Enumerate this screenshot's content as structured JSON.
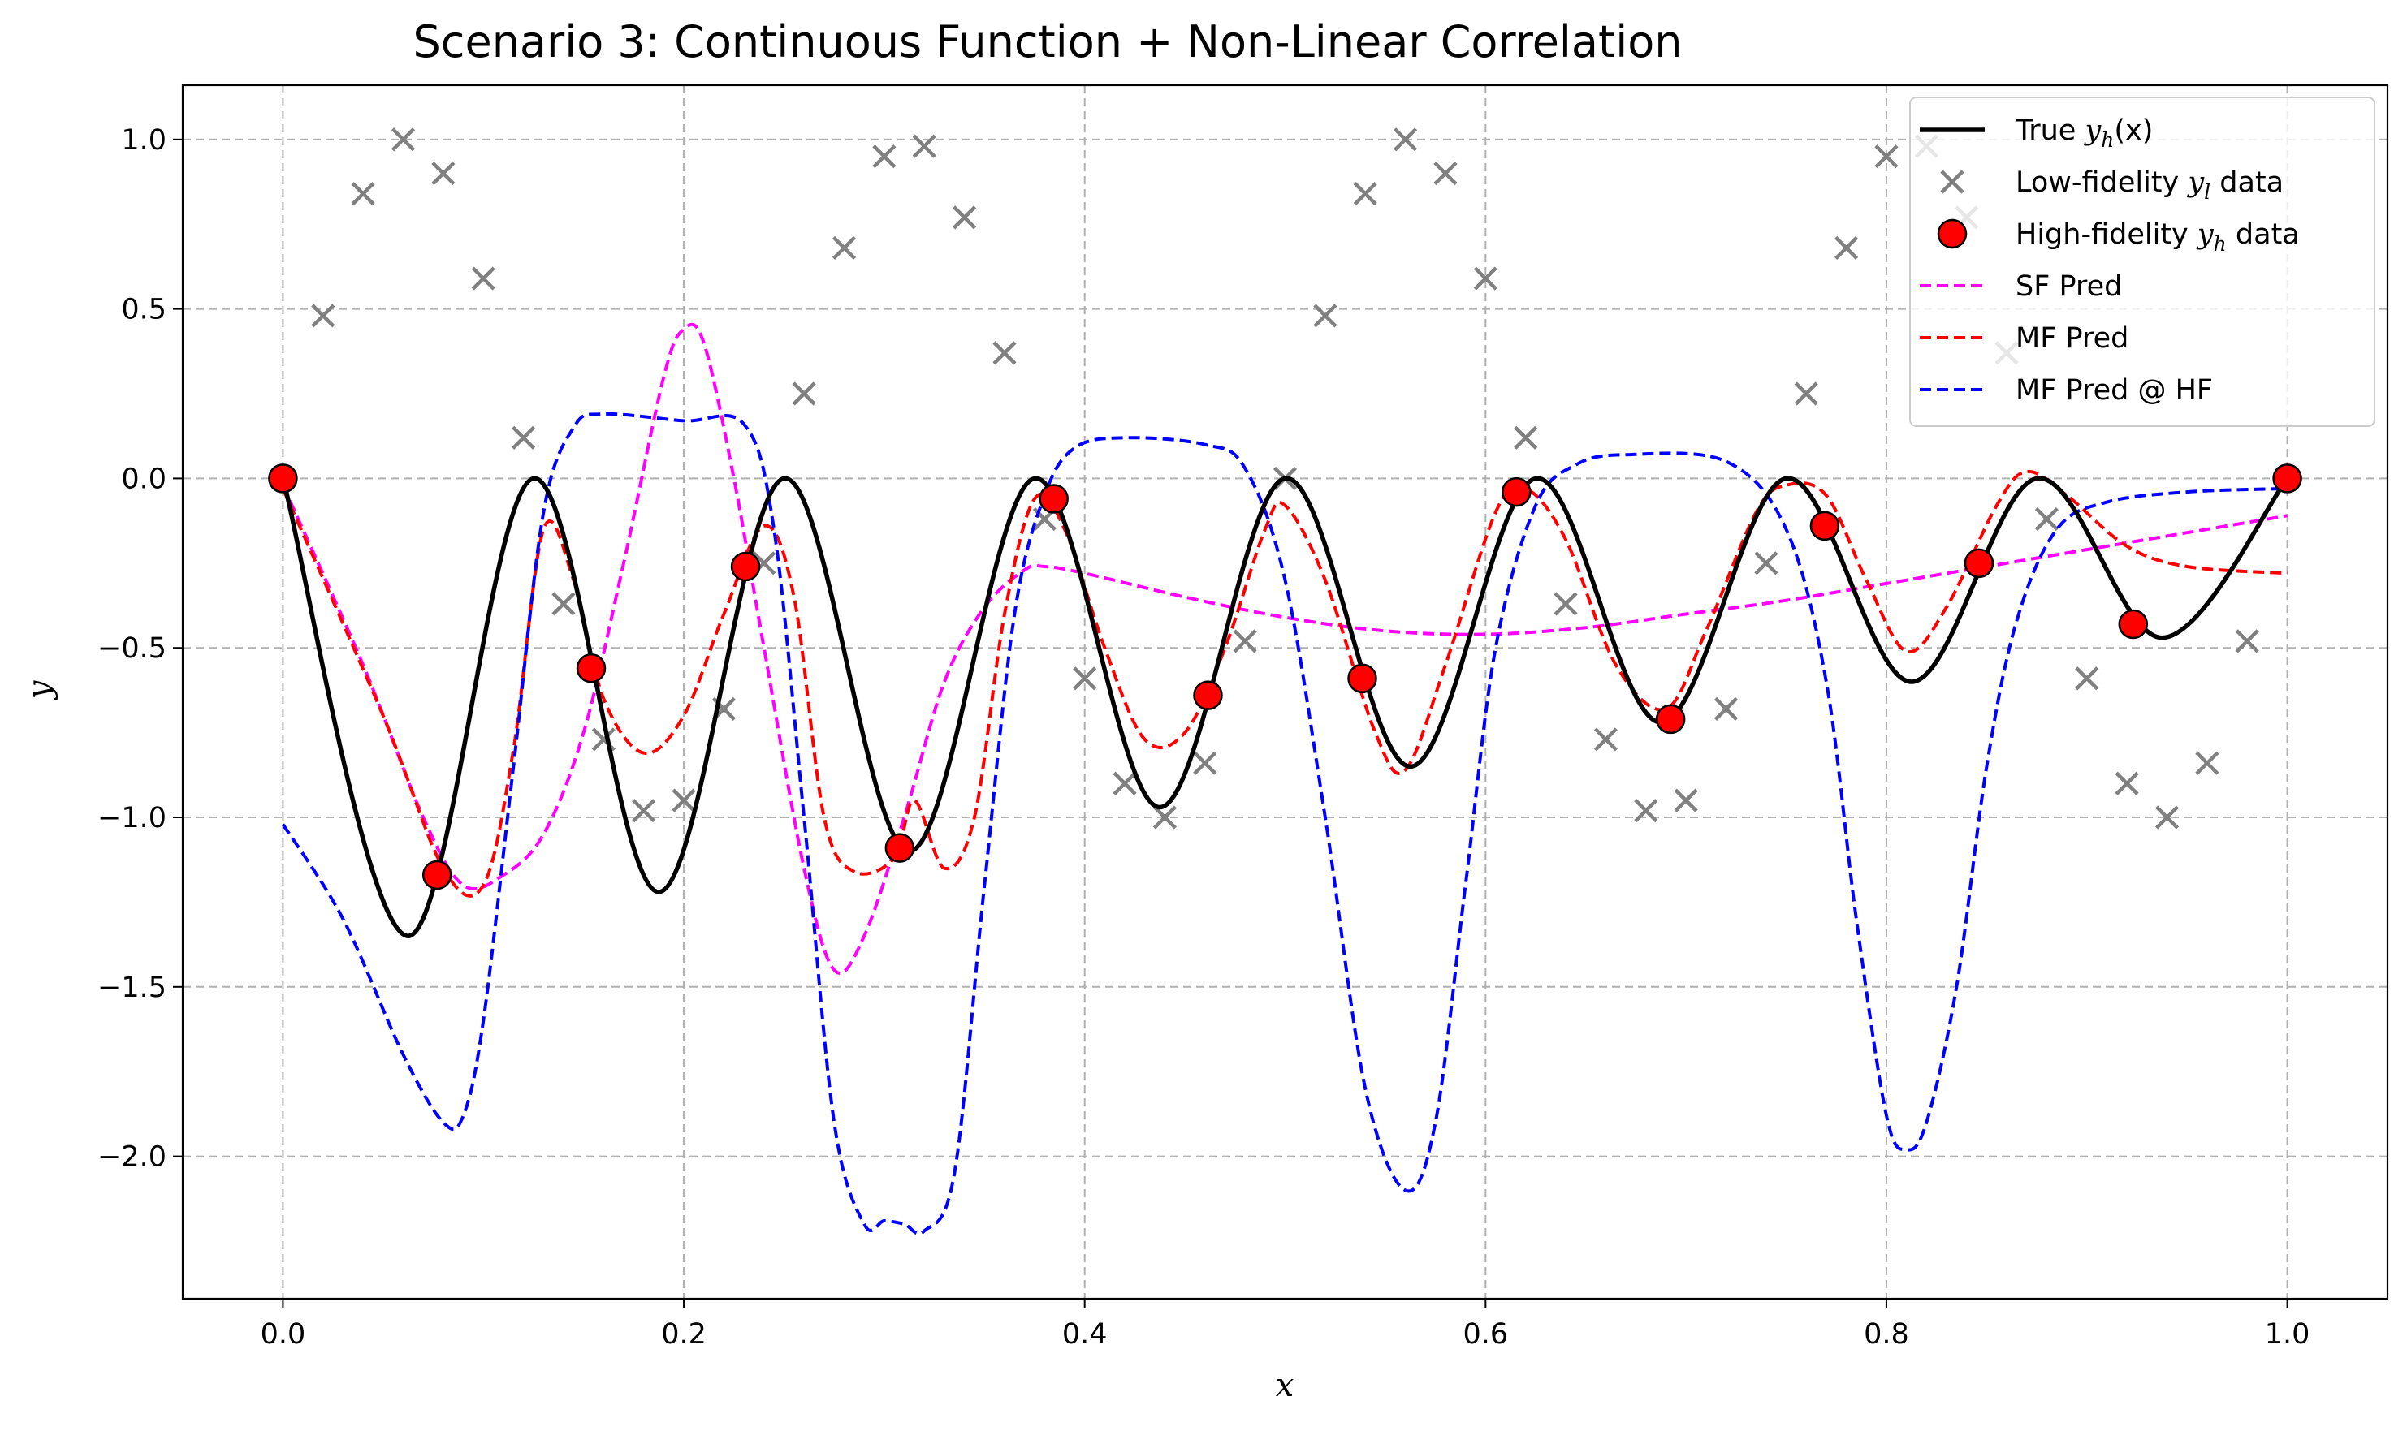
{
  "chart_data": {
    "type": "line",
    "title": "Scenario 3: Continuous Function + Non-Linear Correlation",
    "xlabel": "x",
    "ylabel": "y",
    "xlim": [
      -0.05,
      1.05
    ],
    "ylim": [
      -2.42,
      1.16
    ],
    "x_ticks": [
      0.0,
      0.2,
      0.4,
      0.6,
      0.8,
      1.0
    ],
    "x_tick_labels": [
      "0.0",
      "0.2",
      "0.4",
      "0.6",
      "0.8",
      "1.0"
    ],
    "y_ticks": [
      -2.0,
      -1.5,
      -1.0,
      -0.5,
      0.0,
      0.5,
      1.0
    ],
    "y_tick_labels": [
      "−2.0",
      "−1.5",
      "−1.0",
      "−0.5",
      "0.0",
      "0.5",
      "1.0"
    ],
    "grid": true,
    "legend_position": "upper right",
    "series": [
      {
        "name": "True y_h(x)",
        "kind": "line",
        "color": "#000000",
        "style": "solid",
        "points": [
          [
            0.0,
            0.0
          ],
          [
            0.0625,
            -1.35
          ],
          [
            0.125,
            0.0
          ],
          [
            0.1875,
            -1.22
          ],
          [
            0.25,
            0.0
          ],
          [
            0.3125,
            -1.1
          ],
          [
            0.375,
            0.0
          ],
          [
            0.4375,
            -0.97
          ],
          [
            0.5,
            0.0
          ],
          [
            0.5625,
            -0.85
          ],
          [
            0.625,
            0.0
          ],
          [
            0.6875,
            -0.72
          ],
          [
            0.75,
            0.0
          ],
          [
            0.8125,
            -0.6
          ],
          [
            0.875,
            0.0
          ],
          [
            0.9375,
            -0.47
          ],
          [
            1.0,
            0.0
          ]
        ]
      },
      {
        "name": "Low-fidelity y_l data",
        "kind": "scatter",
        "marker": "x",
        "color": "#808080",
        "points": [
          [
            0.0,
            0.0
          ],
          [
            0.02,
            0.48
          ],
          [
            0.04,
            0.84
          ],
          [
            0.06,
            1.0
          ],
          [
            0.08,
            0.9
          ],
          [
            0.1,
            0.59
          ],
          [
            0.12,
            0.12
          ],
          [
            0.14,
            -0.37
          ],
          [
            0.16,
            -0.77
          ],
          [
            0.18,
            -0.98
          ],
          [
            0.2,
            -0.95
          ],
          [
            0.22,
            -0.68
          ],
          [
            0.24,
            -0.25
          ],
          [
            0.26,
            0.25
          ],
          [
            0.28,
            0.68
          ],
          [
            0.3,
            0.95
          ],
          [
            0.32,
            0.98
          ],
          [
            0.34,
            0.77
          ],
          [
            0.36,
            0.37
          ],
          [
            0.38,
            -0.12
          ],
          [
            0.4,
            -0.59
          ],
          [
            0.42,
            -0.9
          ],
          [
            0.44,
            -1.0
          ],
          [
            0.46,
            -0.84
          ],
          [
            0.48,
            -0.48
          ],
          [
            0.5,
            0.0
          ],
          [
            0.52,
            0.48
          ],
          [
            0.54,
            0.84
          ],
          [
            0.56,
            1.0
          ],
          [
            0.58,
            0.9
          ],
          [
            0.6,
            0.59
          ],
          [
            0.62,
            0.12
          ],
          [
            0.64,
            -0.37
          ],
          [
            0.66,
            -0.77
          ],
          [
            0.68,
            -0.98
          ],
          [
            0.7,
            -0.95
          ],
          [
            0.72,
            -0.68
          ],
          [
            0.74,
            -0.25
          ],
          [
            0.76,
            0.25
          ],
          [
            0.78,
            0.68
          ],
          [
            0.8,
            0.95
          ],
          [
            0.82,
            0.98
          ],
          [
            0.84,
            0.77
          ],
          [
            0.86,
            0.37
          ],
          [
            0.88,
            -0.12
          ],
          [
            0.9,
            -0.59
          ],
          [
            0.92,
            -0.9
          ],
          [
            0.94,
            -1.0
          ],
          [
            0.96,
            -0.84
          ],
          [
            0.98,
            -0.48
          ],
          [
            1.0,
            0.0
          ]
        ]
      },
      {
        "name": "High-fidelity y_h data",
        "kind": "scatter",
        "marker": "o",
        "color": "#ff0000",
        "points": [
          [
            0.0,
            0.0
          ],
          [
            0.0769,
            -1.17
          ],
          [
            0.1538,
            -0.56
          ],
          [
            0.2308,
            -0.26
          ],
          [
            0.3077,
            -1.09
          ],
          [
            0.3846,
            -0.06
          ],
          [
            0.4615,
            -0.64
          ],
          [
            0.5385,
            -0.59
          ],
          [
            0.6154,
            -0.04
          ],
          [
            0.6923,
            -0.71
          ],
          [
            0.7692,
            -0.14
          ],
          [
            0.8462,
            -0.25
          ],
          [
            0.9231,
            -0.43
          ],
          [
            1.0,
            0.0
          ]
        ]
      },
      {
        "name": "SF Pred",
        "kind": "line",
        "color": "#ff00ff",
        "style": "dashed",
        "points": [
          [
            0.0,
            -0.02
          ],
          [
            0.04,
            -0.55
          ],
          [
            0.07,
            -1.0
          ],
          [
            0.09,
            -1.2
          ],
          [
            0.11,
            -1.17
          ],
          [
            0.13,
            -1.05
          ],
          [
            0.15,
            -0.75
          ],
          [
            0.17,
            -0.25
          ],
          [
            0.19,
            0.3
          ],
          [
            0.2,
            0.44
          ],
          [
            0.21,
            0.4
          ],
          [
            0.225,
            0.0
          ],
          [
            0.24,
            -0.5
          ],
          [
            0.26,
            -1.15
          ],
          [
            0.275,
            -1.45
          ],
          [
            0.29,
            -1.35
          ],
          [
            0.31,
            -1.0
          ],
          [
            0.33,
            -0.6
          ],
          [
            0.35,
            -0.38
          ],
          [
            0.37,
            -0.27
          ],
          [
            0.38,
            -0.26
          ],
          [
            0.4,
            -0.28
          ],
          [
            0.45,
            -0.35
          ],
          [
            0.5,
            -0.41
          ],
          [
            0.55,
            -0.45
          ],
          [
            0.6,
            -0.46
          ],
          [
            0.65,
            -0.44
          ],
          [
            0.7,
            -0.4
          ],
          [
            0.75,
            -0.36
          ],
          [
            0.8,
            -0.31
          ],
          [
            0.85,
            -0.26
          ],
          [
            0.9,
            -0.21
          ],
          [
            0.95,
            -0.16
          ],
          [
            1.0,
            -0.11
          ]
        ]
      },
      {
        "name": "MF Pred",
        "kind": "line",
        "color": "#ff0000",
        "style": "dashed",
        "points": [
          [
            0.0,
            -0.03
          ],
          [
            0.05,
            -0.7
          ],
          [
            0.08,
            -1.15
          ],
          [
            0.1,
            -1.2
          ],
          [
            0.115,
            -0.8
          ],
          [
            0.13,
            -0.15
          ],
          [
            0.145,
            -0.3
          ],
          [
            0.16,
            -0.65
          ],
          [
            0.18,
            -0.81
          ],
          [
            0.2,
            -0.7
          ],
          [
            0.22,
            -0.4
          ],
          [
            0.24,
            -0.14
          ],
          [
            0.255,
            -0.35
          ],
          [
            0.27,
            -1.0
          ],
          [
            0.285,
            -1.16
          ],
          [
            0.305,
            -1.12
          ],
          [
            0.315,
            -0.95
          ],
          [
            0.33,
            -1.15
          ],
          [
            0.345,
            -1.0
          ],
          [
            0.36,
            -0.4
          ],
          [
            0.375,
            -0.06
          ],
          [
            0.39,
            -0.15
          ],
          [
            0.41,
            -0.5
          ],
          [
            0.43,
            -0.77
          ],
          [
            0.45,
            -0.75
          ],
          [
            0.47,
            -0.5
          ],
          [
            0.49,
            -0.15
          ],
          [
            0.5,
            -0.08
          ],
          [
            0.52,
            -0.3
          ],
          [
            0.545,
            -0.75
          ],
          [
            0.56,
            -0.86
          ],
          [
            0.58,
            -0.55
          ],
          [
            0.605,
            -0.1
          ],
          [
            0.62,
            -0.03
          ],
          [
            0.64,
            -0.18
          ],
          [
            0.665,
            -0.55
          ],
          [
            0.69,
            -0.68
          ],
          [
            0.71,
            -0.45
          ],
          [
            0.735,
            -0.1
          ],
          [
            0.75,
            -0.02
          ],
          [
            0.77,
            -0.05
          ],
          [
            0.79,
            -0.3
          ],
          [
            0.81,
            -0.51
          ],
          [
            0.83,
            -0.38
          ],
          [
            0.855,
            -0.08
          ],
          [
            0.87,
            0.02
          ],
          [
            0.89,
            -0.05
          ],
          [
            0.92,
            -0.2
          ],
          [
            0.95,
            -0.26
          ],
          [
            1.0,
            -0.28
          ]
        ]
      },
      {
        "name": "MF Pred @ HF",
        "kind": "line",
        "color": "#0000ff",
        "style": "dashed",
        "points": [
          [
            0.0,
            -1.02
          ],
          [
            0.03,
            -1.3
          ],
          [
            0.06,
            -1.7
          ],
          [
            0.08,
            -1.9
          ],
          [
            0.09,
            -1.88
          ],
          [
            0.1,
            -1.6
          ],
          [
            0.115,
            -0.85
          ],
          [
            0.13,
            -0.1
          ],
          [
            0.145,
            0.15
          ],
          [
            0.16,
            0.19
          ],
          [
            0.2,
            0.17
          ],
          [
            0.23,
            0.16
          ],
          [
            0.245,
            -0.15
          ],
          [
            0.26,
            -1.0
          ],
          [
            0.275,
            -1.9
          ],
          [
            0.29,
            -2.2
          ],
          [
            0.3,
            -2.19
          ],
          [
            0.31,
            -2.2
          ],
          [
            0.32,
            -2.22
          ],
          [
            0.335,
            -2.05
          ],
          [
            0.35,
            -1.2
          ],
          [
            0.365,
            -0.4
          ],
          [
            0.38,
            -0.05
          ],
          [
            0.395,
            0.09
          ],
          [
            0.42,
            0.12
          ],
          [
            0.46,
            0.1
          ],
          [
            0.48,
            0.03
          ],
          [
            0.5,
            -0.3
          ],
          [
            0.52,
            -1.0
          ],
          [
            0.54,
            -1.8
          ],
          [
            0.56,
            -2.1
          ],
          [
            0.575,
            -1.9
          ],
          [
            0.59,
            -1.2
          ],
          [
            0.605,
            -0.5
          ],
          [
            0.625,
            -0.08
          ],
          [
            0.645,
            0.04
          ],
          [
            0.67,
            0.07
          ],
          [
            0.72,
            0.05
          ],
          [
            0.75,
            -0.15
          ],
          [
            0.77,
            -0.6
          ],
          [
            0.785,
            -1.3
          ],
          [
            0.8,
            -1.88
          ],
          [
            0.81,
            -1.98
          ],
          [
            0.82,
            -1.9
          ],
          [
            0.835,
            -1.5
          ],
          [
            0.85,
            -0.85
          ],
          [
            0.865,
            -0.42
          ],
          [
            0.885,
            -0.15
          ],
          [
            0.91,
            -0.07
          ],
          [
            0.95,
            -0.04
          ],
          [
            1.0,
            -0.03
          ]
        ]
      }
    ],
    "legend_entries": [
      {
        "prefix": "True ",
        "var": "y",
        "sub": "h",
        "suffix": "(x)"
      },
      {
        "prefix": "Low-fidelity ",
        "var": "y",
        "sub": "l",
        "suffix": " data"
      },
      {
        "prefix": "High-fidelity ",
        "var": "y",
        "sub": "h",
        "suffix": " data"
      },
      {
        "prefix": "SF Pred",
        "var": "",
        "sub": "",
        "suffix": ""
      },
      {
        "prefix": "MF Pred",
        "var": "",
        "sub": "",
        "suffix": ""
      },
      {
        "prefix": "MF Pred @ HF",
        "var": "",
        "sub": "",
        "suffix": ""
      }
    ]
  }
}
